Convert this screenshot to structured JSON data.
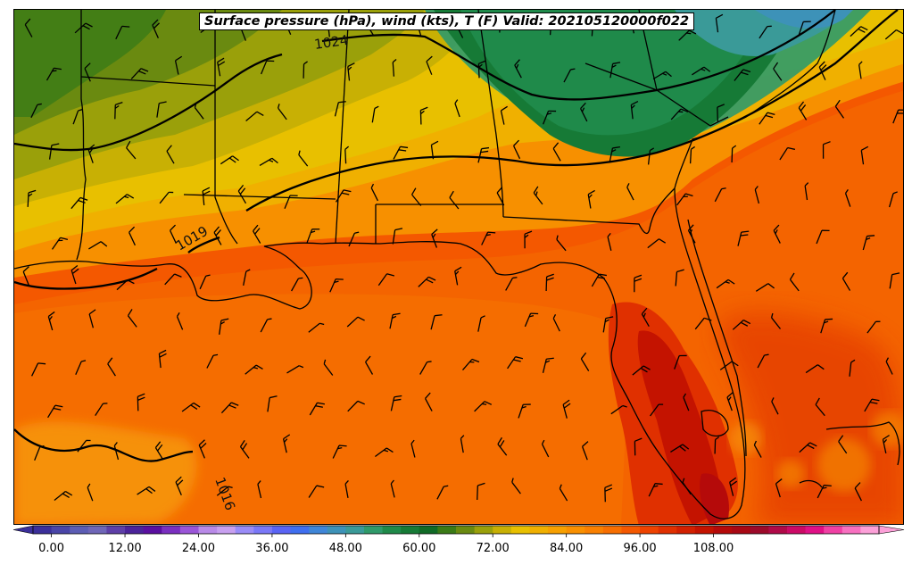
{
  "title": "Surface pressure (hPa), wind (kts), T (F) Valid: 202105120000f022",
  "isobar_labels": [
    "1024",
    "1019",
    "1016"
  ],
  "colorbar": {
    "tick_labels": [
      "0.00",
      "12.00",
      "24.00",
      "36.00",
      "48.00",
      "60.00",
      "72.00",
      "84.00",
      "96.00",
      "108.00"
    ],
    "colors": [
      "#3b2f9a",
      "#4a45a8",
      "#5c5db4",
      "#6f66b8",
      "#5e3fa8",
      "#4b239a",
      "#5a0fa0",
      "#7a2fc0",
      "#9a55d8",
      "#b98ae8",
      "#c8a0f0",
      "#9a8cf8",
      "#7a78f8",
      "#5a64f5",
      "#3f6ff0",
      "#3f86d8",
      "#3d92b8",
      "#3a9a98",
      "#2f9a6a",
      "#1f8a4a",
      "#167a36",
      "#106a26",
      "#3a7a16",
      "#6a8a10",
      "#9aa00a",
      "#c8b004",
      "#e8c000",
      "#f0b000",
      "#f7a000",
      "#f99000",
      "#f98000",
      "#f76e00",
      "#f45800",
      "#ee4200",
      "#e03000",
      "#d22000",
      "#c41300",
      "#b50a0a",
      "#a80814",
      "#9c0a2a",
      "#b00a48",
      "#cc0a66",
      "#e01086",
      "#f040a4",
      "#f870c0",
      "#fca0d8"
    ]
  }
}
